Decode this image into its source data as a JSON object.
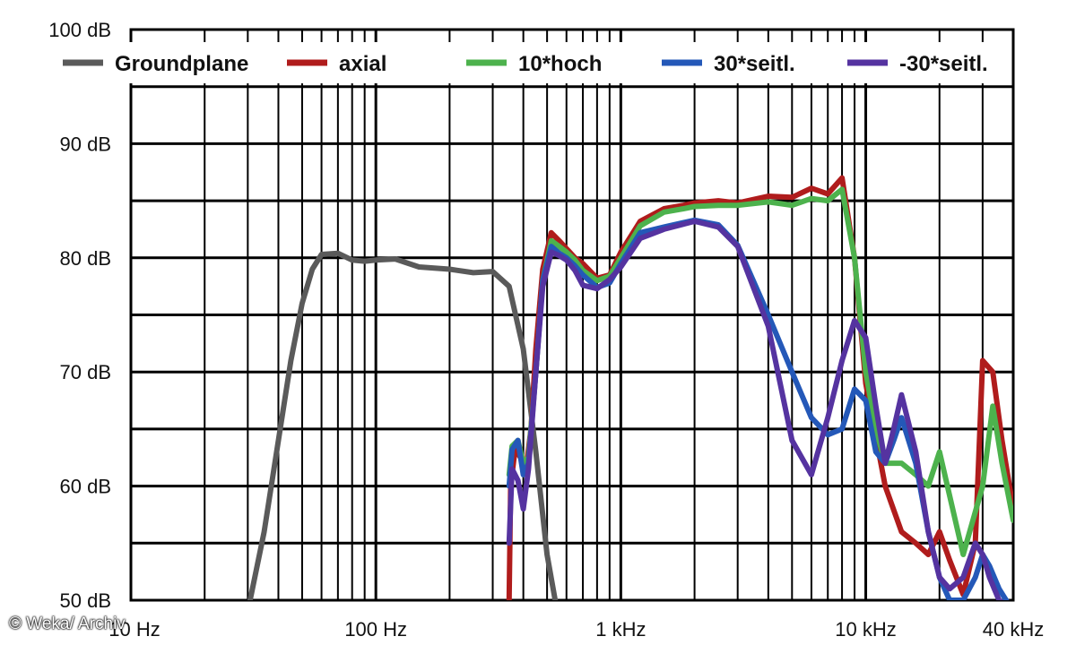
{
  "chart_data": {
    "type": "line",
    "x_scale": "log",
    "xlim": [
      10,
      40000
    ],
    "ylim": [
      50,
      100
    ],
    "grid": true,
    "legend_position": "top",
    "y_ticks": [
      {
        "value": 50,
        "label": "50 dB"
      },
      {
        "value": 60,
        "label": "60 dB"
      },
      {
        "value": 70,
        "label": "70 dB"
      },
      {
        "value": 80,
        "label": "80 dB"
      },
      {
        "value": 90,
        "label": "90 dB"
      },
      {
        "value": 100,
        "label": "100 dB"
      }
    ],
    "x_ticks": [
      {
        "value": 10,
        "label": "10 Hz"
      },
      {
        "value": 100,
        "label": "100 Hz"
      },
      {
        "value": 1000,
        "label": "1 kHz"
      },
      {
        "value": 10000,
        "label": "10 kHz"
      },
      {
        "value": 40000,
        "label": "40 kHz"
      }
    ],
    "series": [
      {
        "name": "Groundplane",
        "color": "#5a5a5a",
        "x": [
          30,
          35,
          40,
          45,
          50,
          55,
          60,
          70,
          80,
          90,
          100,
          120,
          150,
          200,
          250,
          300,
          350,
          400,
          450,
          500,
          550
        ],
        "y": [
          49,
          56,
          64,
          71,
          76,
          79,
          80.3,
          80.4,
          79.8,
          79.7,
          79.8,
          79.9,
          79.2,
          79.0,
          78.7,
          78.8,
          77.5,
          72,
          63,
          54,
          48
        ]
      },
      {
        "name": "axial",
        "color": "#b01c1c",
        "x": [
          350,
          355,
          370,
          390,
          410,
          430,
          450,
          480,
          520,
          560,
          600,
          650,
          700,
          800,
          900,
          1000,
          1200,
          1500,
          1800,
          2000,
          2500,
          3000,
          4000,
          5000,
          6000,
          7000,
          8000,
          9000,
          10000,
          12000,
          14000,
          16000,
          18000,
          20000,
          22000,
          25000,
          28000,
          30000,
          33000,
          36000,
          40000
        ],
        "y": [
          50,
          60,
          63.2,
          62.5,
          61.5,
          65,
          72,
          79,
          82.2,
          81.5,
          80.8,
          80,
          79.5,
          78.2,
          78.5,
          80.5,
          83.2,
          84.3,
          84.6,
          84.8,
          85.0,
          84.8,
          85.4,
          85.3,
          86.1,
          85.6,
          87.0,
          80,
          69,
          60,
          56,
          55,
          54,
          56,
          53.5,
          50.5,
          55,
          71,
          70,
          64,
          58
        ]
      },
      {
        "name": "10*hoch",
        "color": "#4db24d",
        "x": [
          350,
          360,
          380,
          400,
          420,
          450,
          480,
          520,
          560,
          600,
          650,
          700,
          800,
          900,
          1000,
          1200,
          1500,
          1800,
          2000,
          2500,
          3000,
          4000,
          5000,
          6000,
          7000,
          8000,
          9000,
          10000,
          11000,
          12000,
          14000,
          16000,
          18000,
          20000,
          25000,
          30000,
          33000,
          36000,
          40000
        ],
        "y": [
          61,
          63.5,
          64,
          62,
          62.5,
          70,
          78,
          81.5,
          81,
          80.5,
          79.8,
          78.9,
          78,
          78.4,
          80,
          82.8,
          84.0,
          84.3,
          84.5,
          84.6,
          84.6,
          84.9,
          84.6,
          85.2,
          85.0,
          86.0,
          80,
          70,
          65,
          62,
          62,
          61,
          60,
          63,
          54,
          60,
          67,
          62,
          57
        ]
      },
      {
        "name": "30*seitl.",
        "color": "#2458b8",
        "x": [
          350,
          360,
          380,
          400,
          420,
          450,
          480,
          520,
          560,
          600,
          650,
          700,
          800,
          900,
          1000,
          1200,
          1500,
          2000,
          2500,
          3000,
          4000,
          5000,
          6000,
          7000,
          8000,
          9000,
          10000,
          11000,
          12000,
          13000,
          14000,
          16000,
          18000,
          20000,
          22000,
          25000,
          28000,
          30000,
          32000,
          35000,
          40000
        ],
        "y": [
          60,
          63.2,
          64,
          61,
          62,
          70,
          78,
          81,
          80.4,
          80,
          79.3,
          78.5,
          77.4,
          77.8,
          79.5,
          82.2,
          82.7,
          83.3,
          82.9,
          81.1,
          75,
          70,
          66,
          64.5,
          65,
          68.5,
          67.5,
          63,
          62,
          64,
          66,
          62,
          56,
          52,
          50,
          50,
          52,
          54,
          53,
          51,
          49
        ]
      },
      {
        "name": "-30*seitl.",
        "color": "#5533a0",
        "x": [
          350,
          360,
          380,
          400,
          420,
          450,
          480,
          520,
          560,
          600,
          650,
          700,
          800,
          900,
          1000,
          1200,
          1500,
          2000,
          2500,
          3000,
          4000,
          5000,
          6000,
          7000,
          8000,
          9000,
          10000,
          11000,
          12000,
          13000,
          14000,
          16000,
          18000,
          20000,
          22000,
          25000,
          28000,
          30000,
          32000,
          35000,
          40000
        ],
        "y": [
          55,
          61.5,
          60.5,
          58,
          61.5,
          70,
          77.5,
          80.5,
          80.2,
          79.8,
          78.9,
          77.6,
          77.3,
          78.1,
          79.2,
          81.7,
          82.5,
          83.2,
          82.7,
          81.0,
          74,
          64,
          61,
          66,
          71,
          74.5,
          73,
          67,
          62,
          65,
          68,
          63,
          56,
          52,
          51,
          52,
          55,
          54,
          52,
          50,
          49
        ]
      }
    ]
  },
  "watermark": "© Weka/ Archiv"
}
